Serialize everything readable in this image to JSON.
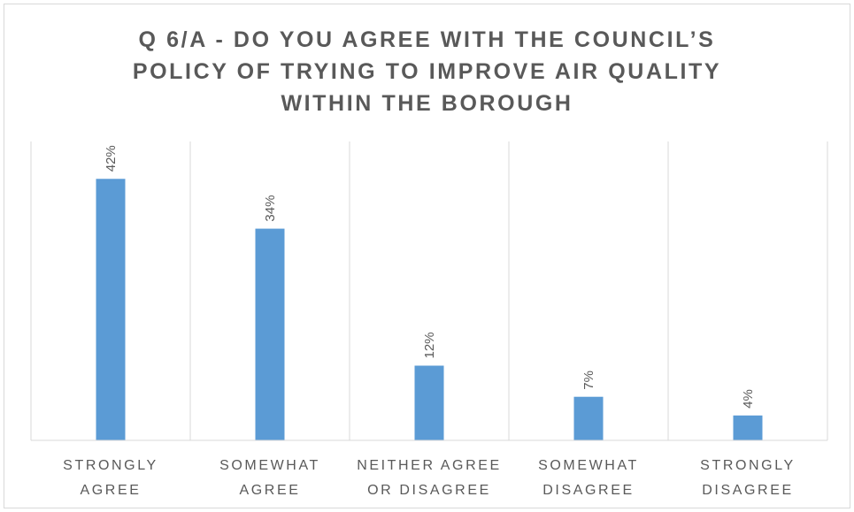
{
  "chart_data": {
    "type": "bar",
    "title_lines": [
      "Q 6/A - DO YOU AGREE WITH THE COUNCIL’S",
      "POLICY OF TRYING TO IMPROVE AIR QUALITY",
      "WITHIN THE BOROUGH"
    ],
    "categories": [
      [
        "STRONGLY",
        "AGREE"
      ],
      [
        "SOMEWHAT",
        "AGREE"
      ],
      [
        "NEITHER AGREE",
        "OR DISAGREE"
      ],
      [
        "SOMEWHAT",
        "DISAGREE"
      ],
      [
        "STRONGLY",
        "DISAGREE"
      ]
    ],
    "values": [
      42,
      34,
      12,
      7,
      4
    ],
    "data_labels": [
      "42%",
      "34%",
      "12%",
      "7%",
      "4%"
    ],
    "unit": "%",
    "ylim": [
      0,
      48
    ],
    "bar_color": "#5b9bd5",
    "grid": "vertical separators",
    "legend": "none"
  }
}
